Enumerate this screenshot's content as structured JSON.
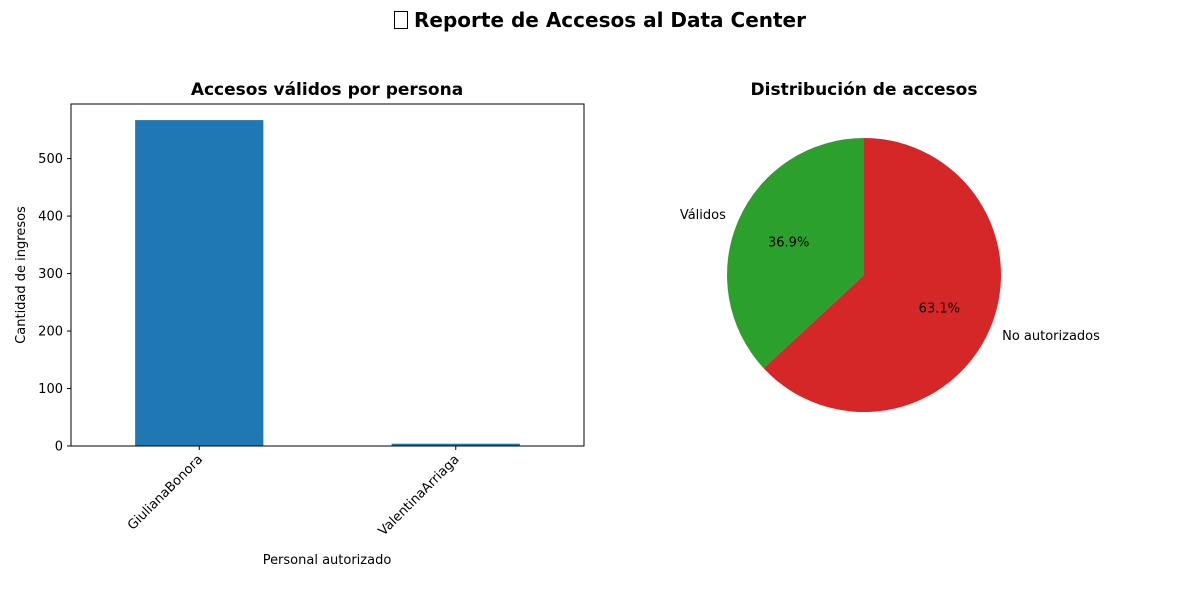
{
  "page": {
    "suptitle": "Reporte de Accesos al Data Center"
  },
  "chart_data": [
    {
      "type": "bar",
      "title": "Accesos válidos por persona",
      "xlabel": "Personal autorizado",
      "ylabel": "Cantidad de ingresos",
      "categories": [
        "GiulianaBonora",
        "ValentinaArriaga"
      ],
      "values": [
        567,
        4
      ],
      "ylim": [
        0,
        595
      ],
      "yticks": [
        0,
        100,
        200,
        300,
        400,
        500
      ],
      "color": "#1f77b4",
      "grid": false
    },
    {
      "type": "pie",
      "title": "Distribución de accesos",
      "labels": [
        "Válidos",
        "No autorizados"
      ],
      "values": [
        36.9,
        63.1
      ],
      "pct_labels": [
        "36.9%",
        "63.1%"
      ],
      "colors": [
        "#2ca02c",
        "#d62728"
      ]
    }
  ]
}
